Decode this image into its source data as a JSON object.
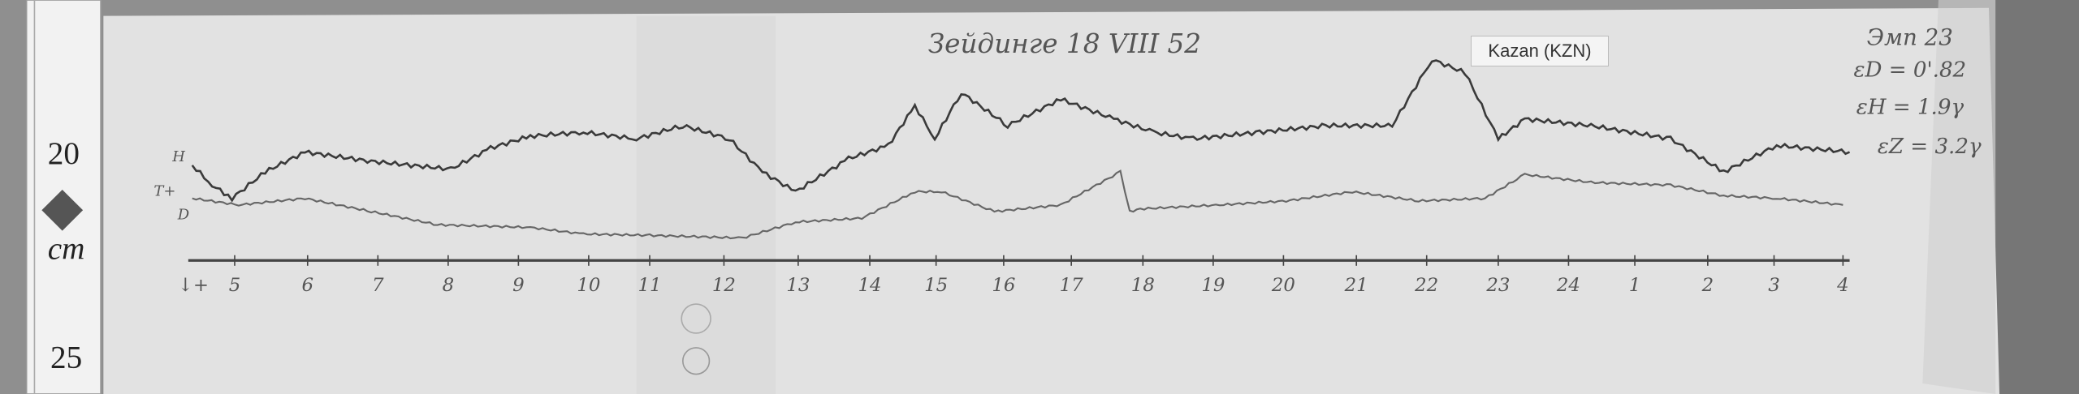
{
  "header": {
    "handwritten_title": "Зейдинге 18 VIII 52",
    "station_label": "Kazan (KZN)"
  },
  "annotations": {
    "scale_title": "Эмп 23",
    "lines": [
      "εD = 0'.82",
      "εH = 1.9γ",
      "εZ = 3.2γ"
    ]
  },
  "ruler": {
    "marks": [
      "20",
      "25"
    ],
    "unit": "cm"
  },
  "chart_data": {
    "type": "line",
    "title": "",
    "xlabel": "",
    "ylabel": "",
    "x_tick_labels": [
      "5",
      "6",
      "7",
      "8",
      "9",
      "10",
      "11",
      "12",
      "13",
      "14",
      "15",
      "16",
      "17",
      "18",
      "19",
      "20",
      "21",
      "22",
      "23",
      "24",
      "1",
      "2",
      "3",
      "4"
    ],
    "axis_start_label": "↓+",
    "series": [
      {
        "name": "H",
        "trace": "upper"
      },
      {
        "name": "D",
        "trace": "lower"
      }
    ],
    "trace_start_labels": [
      "H",
      "T+",
      "D"
    ],
    "grid": false,
    "colors": {
      "trace": "#3a3a3a",
      "paper": "#e3e3e3"
    }
  }
}
